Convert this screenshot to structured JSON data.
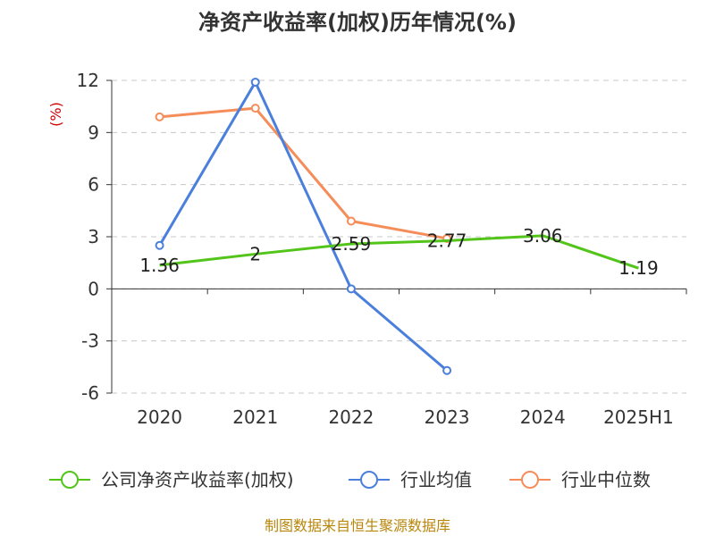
{
  "chart_data": {
    "type": "line",
    "title": "净资产收益率(加权)历年情况(%)",
    "ylabel": "(%)",
    "categories": [
      "2020",
      "2021",
      "2022",
      "2023",
      "2024",
      "2025H1"
    ],
    "ylim": [
      -6,
      12
    ],
    "yticks": [
      "12",
      "9",
      "6",
      "3",
      "0",
      "-3",
      "-6"
    ],
    "ytick_values": [
      12,
      9,
      6,
      3,
      0,
      -3,
      -6
    ],
    "grid": true,
    "legend_position": "bottom",
    "series": [
      {
        "name": "公司净资产收益率(加权)",
        "color": "#52c41a",
        "values": [
          1.36,
          2,
          2.59,
          2.77,
          3.06,
          1.19
        ],
        "labels": [
          "1.36",
          "2",
          "2.59",
          "2.77",
          "3.06",
          "1.19"
        ]
      },
      {
        "name": "行业均值",
        "color": "#4a7fdc",
        "values": [
          2.5,
          11.9,
          0.0,
          -4.7,
          null,
          null
        ]
      },
      {
        "name": "行业中位数",
        "color": "#f58d5a",
        "values": [
          9.9,
          10.4,
          3.9,
          2.9,
          null,
          null
        ]
      }
    ]
  },
  "source": "制图数据来自恒生聚源数据库"
}
